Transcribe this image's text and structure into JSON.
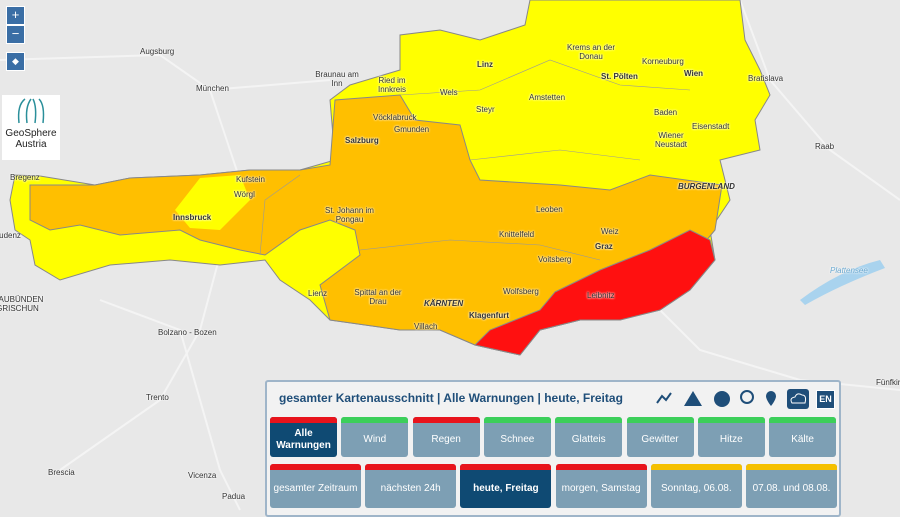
{
  "map": {
    "zoom_in": "+",
    "zoom_out": "−",
    "logo_name": "GeoSphere",
    "logo_sub": "Austria",
    "labels": [
      "Augsburg",
      "München",
      "Braunau am Inn",
      "Ried im Innkreis",
      "Linz",
      "Krems an der Donau",
      "Korneuburg",
      "Wien",
      "Bratislava",
      "St. Pölten",
      "Wels",
      "Steyr",
      "Amstetten",
      "Baden",
      "Eisenstadt",
      "Vöcklabruck",
      "Gmunden",
      "Salzburg",
      "Wiener Neustadt",
      "Raab",
      "Bregenz",
      "Kufstein",
      "Wörgl",
      "Innsbruck",
      "Bludenz",
      "St. Johann im Pongau",
      "BURGENLAND",
      "Leoben",
      "Weiz",
      "Knittelfeld",
      "Graz",
      "Voitsberg",
      "Plattensee",
      "Lienz",
      "Spittal an der Drau",
      "Wolfsberg",
      "Leibnitz",
      "KÄRNTEN",
      "Klagenfurt",
      "Villach",
      "Bolzano - Bozen",
      "GRAUBÜNDEN - GRISCHUN",
      "Trento",
      "Brescia",
      "Vicenza",
      "Padua",
      "Fünfkirchen"
    ]
  },
  "panel": {
    "title": "gesamter Kartenausschnitt | Alle Warnungen | heute, Freitag",
    "language": "EN",
    "hazards": [
      {
        "label": "Alle Warnungen",
        "color": "#e8141c",
        "selected": true
      },
      {
        "label": "Wind",
        "color": "#3ccf5a",
        "selected": false
      },
      {
        "label": "Regen",
        "color": "#e8141c",
        "selected": false
      },
      {
        "label": "Schnee",
        "color": "#3ccf5a",
        "selected": false
      },
      {
        "label": "Glatteis",
        "color": "#3ccf5a",
        "selected": false
      },
      {
        "label": "Gewitter",
        "color": "#3ccf5a",
        "selected": false
      },
      {
        "label": "Hitze",
        "color": "#3ccf5a",
        "selected": false
      },
      {
        "label": "Kälte",
        "color": "#3ccf5a",
        "selected": false
      }
    ],
    "periods": [
      {
        "label": "gesamter Zeitraum",
        "color": "#e8141c",
        "selected": false
      },
      {
        "label": "nächsten 24h",
        "color": "#e8141c",
        "selected": false
      },
      {
        "label": "heute, Freitag",
        "color": "#e8141c",
        "selected": true
      },
      {
        "label": "morgen, Samstag",
        "color": "#e8141c",
        "selected": false
      },
      {
        "label": "Sonntag, 06.08.",
        "color": "#f5c000",
        "selected": false
      },
      {
        "label": "07.08. und 08.08.",
        "color": "#f5c000",
        "selected": false
      }
    ]
  }
}
